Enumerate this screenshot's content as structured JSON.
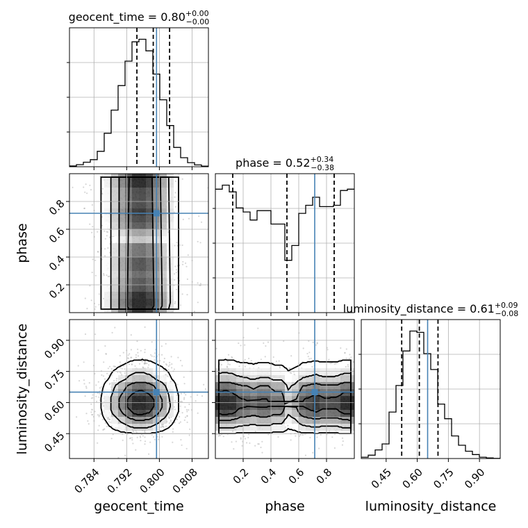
{
  "chart_data": {
    "type": "corner",
    "parameters": [
      {
        "name": "geocent_time",
        "label": "geocent_time",
        "range": [
          0.778,
          0.812
        ],
        "ticks": [
          0.784,
          0.792,
          0.8,
          0.808
        ],
        "tick_labels": [
          "0.784",
          "0.792",
          "0.800",
          "0.808"
        ],
        "truth": 0.7993,
        "quantiles": [
          0.7945,
          0.7985,
          0.8025
        ]
      },
      {
        "name": "phase",
        "label": "phase",
        "range": [
          0.0,
          1.0
        ],
        "ticks": [
          0.2,
          0.4,
          0.6,
          0.8
        ],
        "tick_labels": [
          "0.2",
          "0.4",
          "0.6",
          "0.8"
        ],
        "truth": 0.715,
        "quantiles": [
          0.125,
          0.515,
          0.855
        ]
      },
      {
        "name": "luminosity_distance",
        "label": "luminosity_distance",
        "range": [
          0.33,
          1.0
        ],
        "ticks": [
          0.45,
          0.6,
          0.75,
          0.9
        ],
        "tick_labels": [
          "0.45",
          "0.60",
          "0.75",
          "0.90"
        ],
        "truth": 0.65,
        "quantiles": [
          0.525,
          0.61,
          0.7
        ]
      }
    ],
    "titles": [
      {
        "main": "geocent_time = 0.80",
        "sup": "+0.00",
        "sub": "−0.00"
      },
      {
        "main": "phase = 0.52",
        "sup": "+0.34",
        "sub": "−0.38"
      },
      {
        "main": "luminosity_distance = 0.61",
        "sup": "+0.09",
        "sub": "−0.08"
      }
    ],
    "histograms": {
      "geocent_time": [
        0.006,
        0.016,
        0.035,
        0.055,
        0.12,
        0.26,
        0.44,
        0.63,
        0.82,
        0.97,
        0.99,
        0.9,
        0.72,
        0.52,
        0.32,
        0.15,
        0.07,
        0.032,
        0.014,
        0.005
      ],
      "phase": [
        0.92,
        0.95,
        0.9,
        0.78,
        0.75,
        0.69,
        0.76,
        0.76,
        0.66,
        0.66,
        0.39,
        0.5,
        0.74,
        0.8,
        0.86,
        0.79,
        0.79,
        0.8,
        0.91,
        0.92
      ],
      "luminosity_distance": [
        0.01,
        0.025,
        0.065,
        0.11,
        0.35,
        0.55,
        0.81,
        0.96,
        0.95,
        0.79,
        0.67,
        0.41,
        0.3,
        0.17,
        0.1,
        0.055,
        0.03,
        0.01,
        0.004,
        0.001
      ]
    },
    "grid": true,
    "contour_levels": 4
  }
}
